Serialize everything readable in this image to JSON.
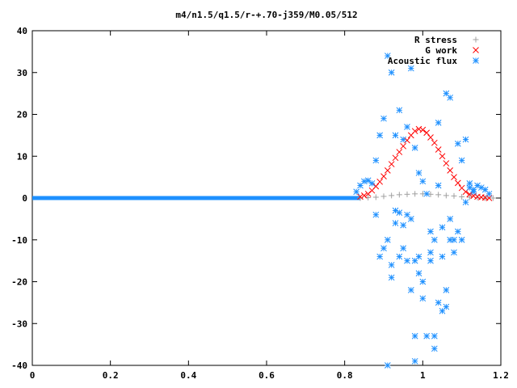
{
  "chart_data": {
    "type": "scatter",
    "title": "m4/n1.5/q1.5/r-+.70-j359/M0.05/512",
    "xlabel": "",
    "ylabel": "",
    "xlim": [
      0,
      1.2
    ],
    "ylim": [
      -40,
      40
    ],
    "xticks": [
      "0",
      "0.2",
      "0.4",
      "0.6",
      "0.8",
      "1",
      "1.2"
    ],
    "yticks": [
      "40",
      "30",
      "20",
      "10",
      "0",
      "-10",
      "-20",
      "-30",
      "-40"
    ],
    "grid": false,
    "legend_position": "top-right",
    "series": [
      {
        "name": "R stress",
        "marker": "plus",
        "color": "#a0a0a0",
        "x": [
          0.84,
          0.86,
          0.88,
          0.9,
          0.92,
          0.94,
          0.96,
          0.98,
          1.0,
          1.02,
          1.04,
          1.06,
          1.08,
          1.1,
          1.12,
          1.14,
          1.16,
          1.18
        ],
        "y": [
          0.0,
          0.1,
          0.2,
          0.4,
          0.6,
          0.8,
          0.9,
          1.0,
          1.0,
          0.9,
          0.8,
          0.6,
          0.5,
          0.3,
          0.2,
          0.1,
          0.0,
          0.0
        ]
      },
      {
        "name": "G work",
        "marker": "cross",
        "color": "#ff0000",
        "x": [
          0.84,
          0.85,
          0.86,
          0.87,
          0.88,
          0.89,
          0.9,
          0.91,
          0.92,
          0.93,
          0.94,
          0.95,
          0.96,
          0.97,
          0.98,
          0.99,
          1.0,
          1.01,
          1.02,
          1.03,
          1.04,
          1.05,
          1.06,
          1.07,
          1.08,
          1.09,
          1.1,
          1.11,
          1.12,
          1.13,
          1.14,
          1.15,
          1.16,
          1.17
        ],
        "y": [
          0.3,
          0.6,
          1.0,
          1.8,
          2.8,
          3.9,
          5.2,
          6.6,
          8.1,
          9.6,
          11.0,
          12.4,
          13.8,
          15.0,
          16.0,
          16.5,
          16.3,
          15.6,
          14.5,
          13.2,
          11.6,
          10.0,
          8.3,
          6.6,
          5.0,
          3.6,
          2.4,
          1.5,
          0.9,
          0.5,
          0.3,
          0.2,
          0.1,
          0.0
        ]
      },
      {
        "name": "Acoustic flux",
        "marker": "asterisk",
        "color": "#1e90ff",
        "x": [
          0.83,
          0.84,
          0.85,
          0.86,
          0.87,
          0.88,
          0.88,
          0.89,
          0.89,
          0.9,
          0.9,
          0.91,
          0.91,
          0.91,
          0.92,
          0.92,
          0.92,
          0.93,
          0.93,
          0.93,
          0.94,
          0.94,
          0.94,
          0.95,
          0.95,
          0.95,
          0.96,
          0.96,
          0.96,
          0.97,
          0.97,
          0.97,
          0.98,
          0.98,
          0.98,
          0.98,
          0.99,
          0.99,
          0.99,
          1.0,
          1.0,
          1.0,
          1.01,
          1.01,
          1.02,
          1.02,
          1.02,
          1.03,
          1.03,
          1.03,
          1.04,
          1.04,
          1.04,
          1.05,
          1.05,
          1.05,
          1.06,
          1.06,
          1.06,
          1.07,
          1.07,
          1.07,
          1.08,
          1.08,
          1.09,
          1.09,
          1.1,
          1.1,
          1.11,
          1.11,
          1.12,
          1.12,
          1.13,
          1.13,
          1.14,
          1.15,
          1.16,
          1.17
        ],
        "y": [
          1.5,
          3.0,
          4.0,
          4.2,
          3.5,
          9.0,
          -4.0,
          15.0,
          -14.0,
          19.0,
          -12.0,
          34.0,
          -10.0,
          -40.0,
          30.0,
          -16.0,
          -19.0,
          15.0,
          -6.0,
          -3.0,
          21.0,
          -14.0,
          -3.5,
          14.0,
          -6.5,
          -12.0,
          17.0,
          -4.0,
          -15.0,
          31.0,
          -5.0,
          -22.0,
          12.0,
          -15.0,
          -33.0,
          -39.0,
          6.0,
          -14.0,
          -18.0,
          4.0,
          -20.0,
          -24.0,
          1.0,
          -33.0,
          -8.0,
          -13.0,
          -15.0,
          -33.0,
          -36.0,
          -10.0,
          18.0,
          3.0,
          -25.0,
          -14.0,
          -27.0,
          -7.0,
          25.0,
          -26.0,
          -22.0,
          24.0,
          -10.0,
          -5.0,
          -13.0,
          -10.0,
          13.0,
          -8.0,
          9.0,
          -10.0,
          14.0,
          -1.0,
          3.5,
          2.5,
          2.0,
          1.5,
          3.0,
          2.5,
          2.0,
          1.0
        ]
      }
    ]
  }
}
